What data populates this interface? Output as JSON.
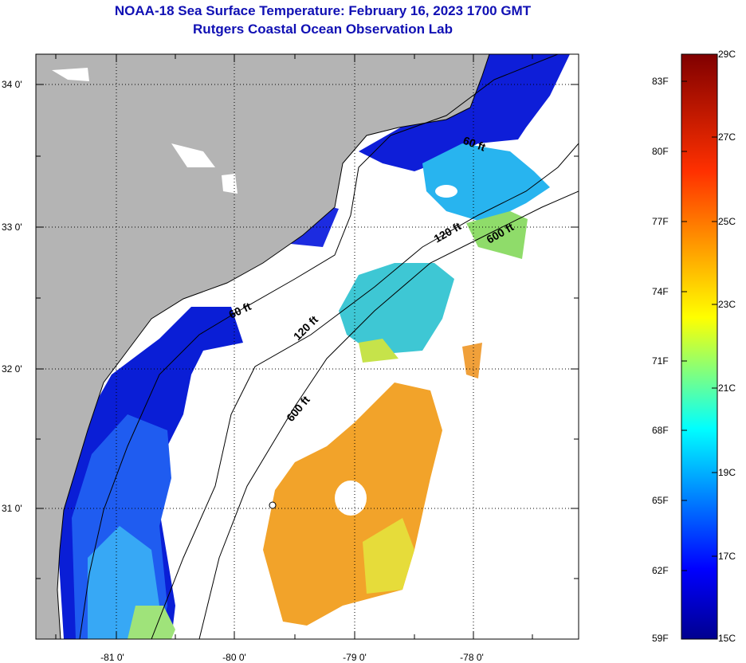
{
  "title": {
    "line1": "NOAA-18 Sea Surface Temperature:  February 16, 2023 1700 GMT",
    "line2": "Rutgers Coastal Ocean Observation Lab"
  },
  "map": {
    "x_ticks": [
      "-81 0'",
      "-80 0'",
      "-79 0'",
      "-78 0'"
    ],
    "y_ticks": [
      "34 0'",
      "33 0'",
      "32 0'",
      "31 0'"
    ],
    "isobaths": [
      "60 ft",
      "60 ft",
      "120 ft",
      "120 ft",
      "600 ft",
      "600 ft"
    ],
    "colors": {
      "land": "#b4b4b4",
      "cloud": "#ffffff",
      "coast": "#000000"
    }
  },
  "colorbar": {
    "fahrenheit": [
      "83F",
      "80F",
      "77F",
      "74F",
      "71F",
      "68F",
      "65F",
      "62F",
      "59F"
    ],
    "celsius": [
      "29C",
      "27C",
      "25C",
      "23C",
      "21C",
      "19C",
      "17C",
      "15C"
    ]
  }
}
